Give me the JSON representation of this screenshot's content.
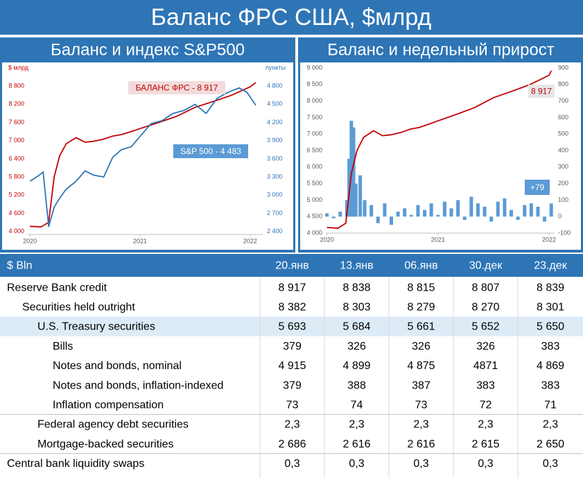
{
  "title": "Баланс ФРС США, $млрд",
  "chart_data": [
    {
      "type": "line",
      "title": "Баланс и индекс S&P500",
      "ylabel": "$ млрд",
      "y2label": "пункты",
      "xlim": [
        2019.98,
        2022.12
      ],
      "xticks": [
        2020,
        2021,
        2022
      ],
      "ylim": [
        3900,
        9400
      ],
      "yticks": [
        {
          "value": 4000,
          "label": "4 000"
        },
        {
          "value": 4600,
          "label": "4 600"
        },
        {
          "value": 5200,
          "label": "5 200"
        },
        {
          "value": 5800,
          "label": "5 800"
        },
        {
          "value": 6400,
          "label": "6 400"
        },
        {
          "value": 7000,
          "label": "7 000"
        },
        {
          "value": 7600,
          "label": "7 600"
        },
        {
          "value": 8200,
          "label": "8 200"
        },
        {
          "value": 8800,
          "label": "8 800"
        }
      ],
      "y2lim": [
        2350,
        5100
      ],
      "y2ticks": [
        {
          "value": 2400,
          "label": "2 400"
        },
        {
          "value": 2700,
          "label": "2 700"
        },
        {
          "value": 3000,
          "label": "3 000"
        },
        {
          "value": 3300,
          "label": "3 300"
        },
        {
          "value": 3600,
          "label": "3 600"
        },
        {
          "value": 3900,
          "label": "3 900"
        },
        {
          "value": 4200,
          "label": "4 200"
        },
        {
          "value": 4500,
          "label": "4 500"
        },
        {
          "value": 4800,
          "label": "4 800"
        }
      ],
      "grid": false,
      "series": [
        {
          "type": "line",
          "color": "#c00000",
          "axis": "y",
          "x": [
            2020.0,
            2020.1,
            2020.17,
            2020.22,
            2020.27,
            2020.33,
            2020.42,
            2020.5,
            2020.58,
            2020.67,
            2020.75,
            2020.83,
            2020.92,
            2021.0,
            2021.17,
            2021.33,
            2021.5,
            2021.67,
            2021.83,
            2022.0,
            2022.05
          ],
          "values": [
            4170,
            4150,
            4300,
            5800,
            6500,
            6900,
            7100,
            6950,
            6980,
            7050,
            7150,
            7200,
            7300,
            7400,
            7600,
            7800,
            8100,
            8300,
            8500,
            8780,
            8917
          ]
        },
        {
          "type": "line",
          "color": "#2e75b6",
          "axis": "y2",
          "x": [
            2020.0,
            2020.06,
            2020.12,
            2020.17,
            2020.22,
            2020.27,
            2020.33,
            2020.42,
            2020.5,
            2020.58,
            2020.67,
            2020.75,
            2020.83,
            2020.92,
            2021.0,
            2021.1,
            2021.2,
            2021.3,
            2021.4,
            2021.5,
            2021.6,
            2021.7,
            2021.8,
            2021.9,
            2021.97,
            2022.05
          ],
          "values": [
            3230,
            3300,
            3380,
            2480,
            2800,
            2950,
            3100,
            3230,
            3400,
            3330,
            3300,
            3620,
            3750,
            3800,
            3970,
            4180,
            4230,
            4350,
            4400,
            4500,
            4350,
            4600,
            4700,
            4770,
            4700,
            4483
          ]
        }
      ],
      "annotations": [
        "БАЛАНС ФРС - 8 917",
        "S&P 500 - 4 483"
      ]
    },
    {
      "type": "combo",
      "title": "Баланс и недельный прирост",
      "xlim": [
        2019.99,
        2022.05
      ],
      "xticks": [
        2020,
        2021,
        2022
      ],
      "ylim": [
        4000,
        9000
      ],
      "yticks": [
        {
          "value": 4000,
          "label": "4 000"
        },
        {
          "value": 4500,
          "label": "4 500"
        },
        {
          "value": 5000,
          "label": "5 000"
        },
        {
          "value": 5500,
          "label": "5 500"
        },
        {
          "value": 6000,
          "label": "6 000"
        },
        {
          "value": 6500,
          "label": "6 500"
        },
        {
          "value": 7000,
          "label": "7 000"
        },
        {
          "value": 7500,
          "label": "7 500"
        },
        {
          "value": 8000,
          "label": "8 000"
        },
        {
          "value": 8500,
          "label": "8 500"
        },
        {
          "value": 9000,
          "label": "9 000"
        }
      ],
      "y2lim": [
        -100,
        900
      ],
      "y2ticks": [
        -100,
        0,
        100,
        200,
        300,
        400,
        500,
        600,
        700,
        800,
        900
      ],
      "grid": false,
      "series": [
        {
          "type": "bar",
          "color": "#5b9bd5",
          "axis": "y2",
          "x": [
            2020.0,
            2020.06,
            2020.12,
            2020.18,
            2020.2,
            2020.22,
            2020.24,
            2020.26,
            2020.3,
            2020.34,
            2020.4,
            2020.46,
            2020.52,
            2020.58,
            2020.64,
            2020.7,
            2020.76,
            2020.82,
            2020.88,
            2020.94,
            2021.0,
            2021.06,
            2021.12,
            2021.18,
            2021.24,
            2021.3,
            2021.36,
            2021.42,
            2021.48,
            2021.54,
            2021.6,
            2021.66,
            2021.72,
            2021.78,
            2021.84,
            2021.9,
            2021.96,
            2022.02
          ],
          "values": [
            20,
            -10,
            30,
            100,
            350,
            580,
            540,
            200,
            250,
            100,
            70,
            -40,
            80,
            -50,
            30,
            50,
            10,
            70,
            40,
            80,
            10,
            90,
            50,
            100,
            -20,
            120,
            80,
            60,
            -30,
            90,
            110,
            40,
            -20,
            70,
            80,
            60,
            -30,
            79
          ]
        },
        {
          "type": "line",
          "color": "#c00000",
          "axis": "y",
          "x": [
            2020.0,
            2020.1,
            2020.17,
            2020.22,
            2020.27,
            2020.33,
            2020.42,
            2020.5,
            2020.58,
            2020.67,
            2020.75,
            2020.83,
            2020.92,
            2021.0,
            2021.17,
            2021.33,
            2021.5,
            2021.67,
            2021.83,
            2022.0,
            2022.02
          ],
          "values": [
            4170,
            4150,
            4300,
            5800,
            6500,
            6900,
            7100,
            6950,
            6980,
            7050,
            7150,
            7200,
            7300,
            7400,
            7600,
            7800,
            8100,
            8300,
            8500,
            8780,
            8917
          ]
        }
      ],
      "annotations": [
        "8 917",
        "+79"
      ]
    }
  ],
  "table": {
    "header": [
      "$ Bln",
      "20.янв",
      "13.янв",
      "06.янв",
      "30.дек",
      "23.дек"
    ],
    "rows": [
      [
        "Reserve Bank credit",
        "8 917",
        "8 838",
        "8 815",
        "8 807",
        "8 839"
      ],
      [
        "Securities held outright",
        "8 382",
        "8 303",
        "8 279",
        "8 270",
        "8 301"
      ],
      [
        "U.S. Treasury securities",
        "5 693",
        "5 684",
        "5 661",
        "5 652",
        "5 650"
      ],
      [
        "Bills",
        "379",
        "326",
        "326",
        "326",
        "383"
      ],
      [
        "Notes and bonds, nominal",
        "4 915",
        "4 899",
        "4 875",
        "4871",
        "4 869"
      ],
      [
        "Notes and bonds, inflation-indexed",
        "379",
        "388",
        "387",
        "383",
        "383"
      ],
      [
        "Inflation compensation",
        "73",
        "74",
        "73",
        "72",
        "71"
      ],
      [
        "Federal agency debt securities",
        "2,3",
        "2,3",
        "2,3",
        "2,3",
        "2,3"
      ],
      [
        "Mortgage-backed securities",
        "2 686",
        "2 616",
        "2 616",
        "2 615",
        "2 650"
      ],
      [
        "Central bank liquidity swaps",
        "0,3",
        "0,3",
        "0,3",
        "0,3",
        "0,3"
      ]
    ]
  }
}
